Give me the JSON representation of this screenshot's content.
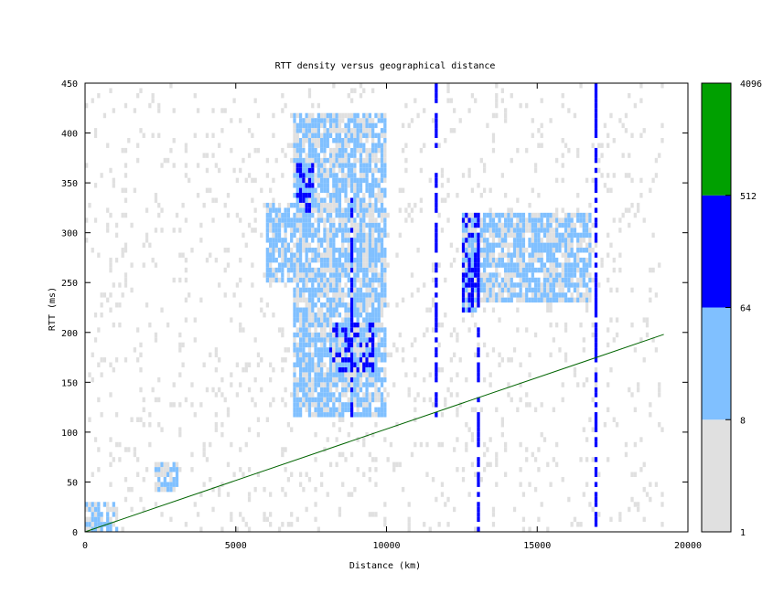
{
  "chart_data": {
    "type": "heatmap",
    "title": "RTT density versus geographical distance",
    "xlabel": "Distance (km)",
    "ylabel": "RTT (ms)",
    "xlim": [
      0,
      20000
    ],
    "ylim": [
      0,
      450
    ],
    "xticks": [
      "0",
      "5000",
      "10000",
      "15000",
      "20000"
    ],
    "yticks": [
      "0",
      "50",
      "100",
      "150",
      "200",
      "250",
      "300",
      "350",
      "400",
      "450"
    ],
    "grid": false,
    "colorbar": {
      "scale": "log",
      "ticks": [
        "1",
        "8",
        "64",
        "512",
        "4096"
      ],
      "bins": [
        {
          "from": 1,
          "to": 8,
          "color": "#e0e0e0"
        },
        {
          "from": 8,
          "to": 64,
          "color": "#80c0ff"
        },
        {
          "from": 64,
          "to": 512,
          "color": "#0000ff"
        },
        {
          "from": 512,
          "to": 4096,
          "color": "#00a000"
        }
      ]
    },
    "reference_line": {
      "color": "#006400",
      "points": [
        [
          0,
          0
        ],
        [
          19200,
          198
        ]
      ]
    },
    "regions": [
      {
        "x": [
          6900,
          10000
        ],
        "y": [
          115,
          420
        ],
        "level": "light-blue"
      },
      {
        "x": [
          8100,
          9600
        ],
        "y": [
          160,
          210
        ],
        "level": "dark-blue"
      },
      {
        "x": [
          7000,
          7600
        ],
        "y": [
          320,
          370
        ],
        "level": "dark-blue"
      },
      {
        "x": [
          12600,
          16800
        ],
        "y": [
          230,
          320
        ],
        "level": "light-blue"
      },
      {
        "x": [
          12500,
          13000
        ],
        "y": [
          220,
          320
        ],
        "level": "dark-blue"
      },
      {
        "x": [
          6000,
          7000
        ],
        "y": [
          250,
          330
        ],
        "level": "light-blue"
      },
      {
        "x": [
          2300,
          3100
        ],
        "y": [
          40,
          70
        ],
        "level": "light-blue"
      },
      {
        "x": [
          0,
          1100
        ],
        "y": [
          0,
          30
        ],
        "level": "light-blue"
      }
    ],
    "columns": [
      {
        "x": 11600,
        "y": [
          115,
          450
        ],
        "level": "dark-blue"
      },
      {
        "x": 16900,
        "y": [
          0,
          450
        ],
        "level": "dark-blue"
      },
      {
        "x": 8800,
        "y": [
          115,
          340
        ],
        "level": "dark-blue"
      },
      {
        "x": 13000,
        "y": [
          0,
          320
        ],
        "level": "dark-blue"
      }
    ]
  }
}
